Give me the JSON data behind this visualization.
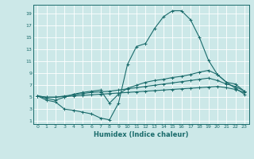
{
  "xlabel": "Humidex (Indice chaleur)",
  "bg_color": "#cce8e8",
  "grid_color": "#ffffff",
  "line_color": "#1a6b6b",
  "xlim": [
    -0.5,
    23.5
  ],
  "ylim": [
    0.5,
    20.5
  ],
  "xticks": [
    0,
    1,
    2,
    3,
    4,
    5,
    6,
    7,
    8,
    9,
    10,
    11,
    12,
    13,
    14,
    15,
    16,
    17,
    18,
    19,
    20,
    21,
    22,
    23
  ],
  "yticks": [
    1,
    3,
    5,
    7,
    9,
    11,
    13,
    15,
    17,
    19
  ],
  "series": [
    [
      5.2,
      4.5,
      4.2,
      3.0,
      2.8,
      2.5,
      2.2,
      1.5,
      1.2,
      4.0,
      10.5,
      13.5,
      14.0,
      16.5,
      18.5,
      19.5,
      19.5,
      18.0,
      15.0,
      11.2,
      8.8,
      7.5,
      6.5,
      5.5
    ],
    [
      5.2,
      4.8,
      4.5,
      5.0,
      5.5,
      5.8,
      6.0,
      6.2,
      4.0,
      5.5,
      6.5,
      7.0,
      7.5,
      7.8,
      8.0,
      8.3,
      8.5,
      8.8,
      9.2,
      9.5,
      8.8,
      7.5,
      7.2,
      6.0
    ],
    [
      5.2,
      5.0,
      5.0,
      5.2,
      5.4,
      5.6,
      5.8,
      5.9,
      6.0,
      6.2,
      6.4,
      6.6,
      6.8,
      7.0,
      7.2,
      7.4,
      7.6,
      7.8,
      8.0,
      8.2,
      7.8,
      7.2,
      6.8,
      6.0
    ],
    [
      5.2,
      5.0,
      5.0,
      5.1,
      5.2,
      5.3,
      5.4,
      5.5,
      5.6,
      5.7,
      5.8,
      5.9,
      6.0,
      6.1,
      6.2,
      6.3,
      6.4,
      6.5,
      6.6,
      6.7,
      6.8,
      6.6,
      6.3,
      5.8
    ]
  ]
}
